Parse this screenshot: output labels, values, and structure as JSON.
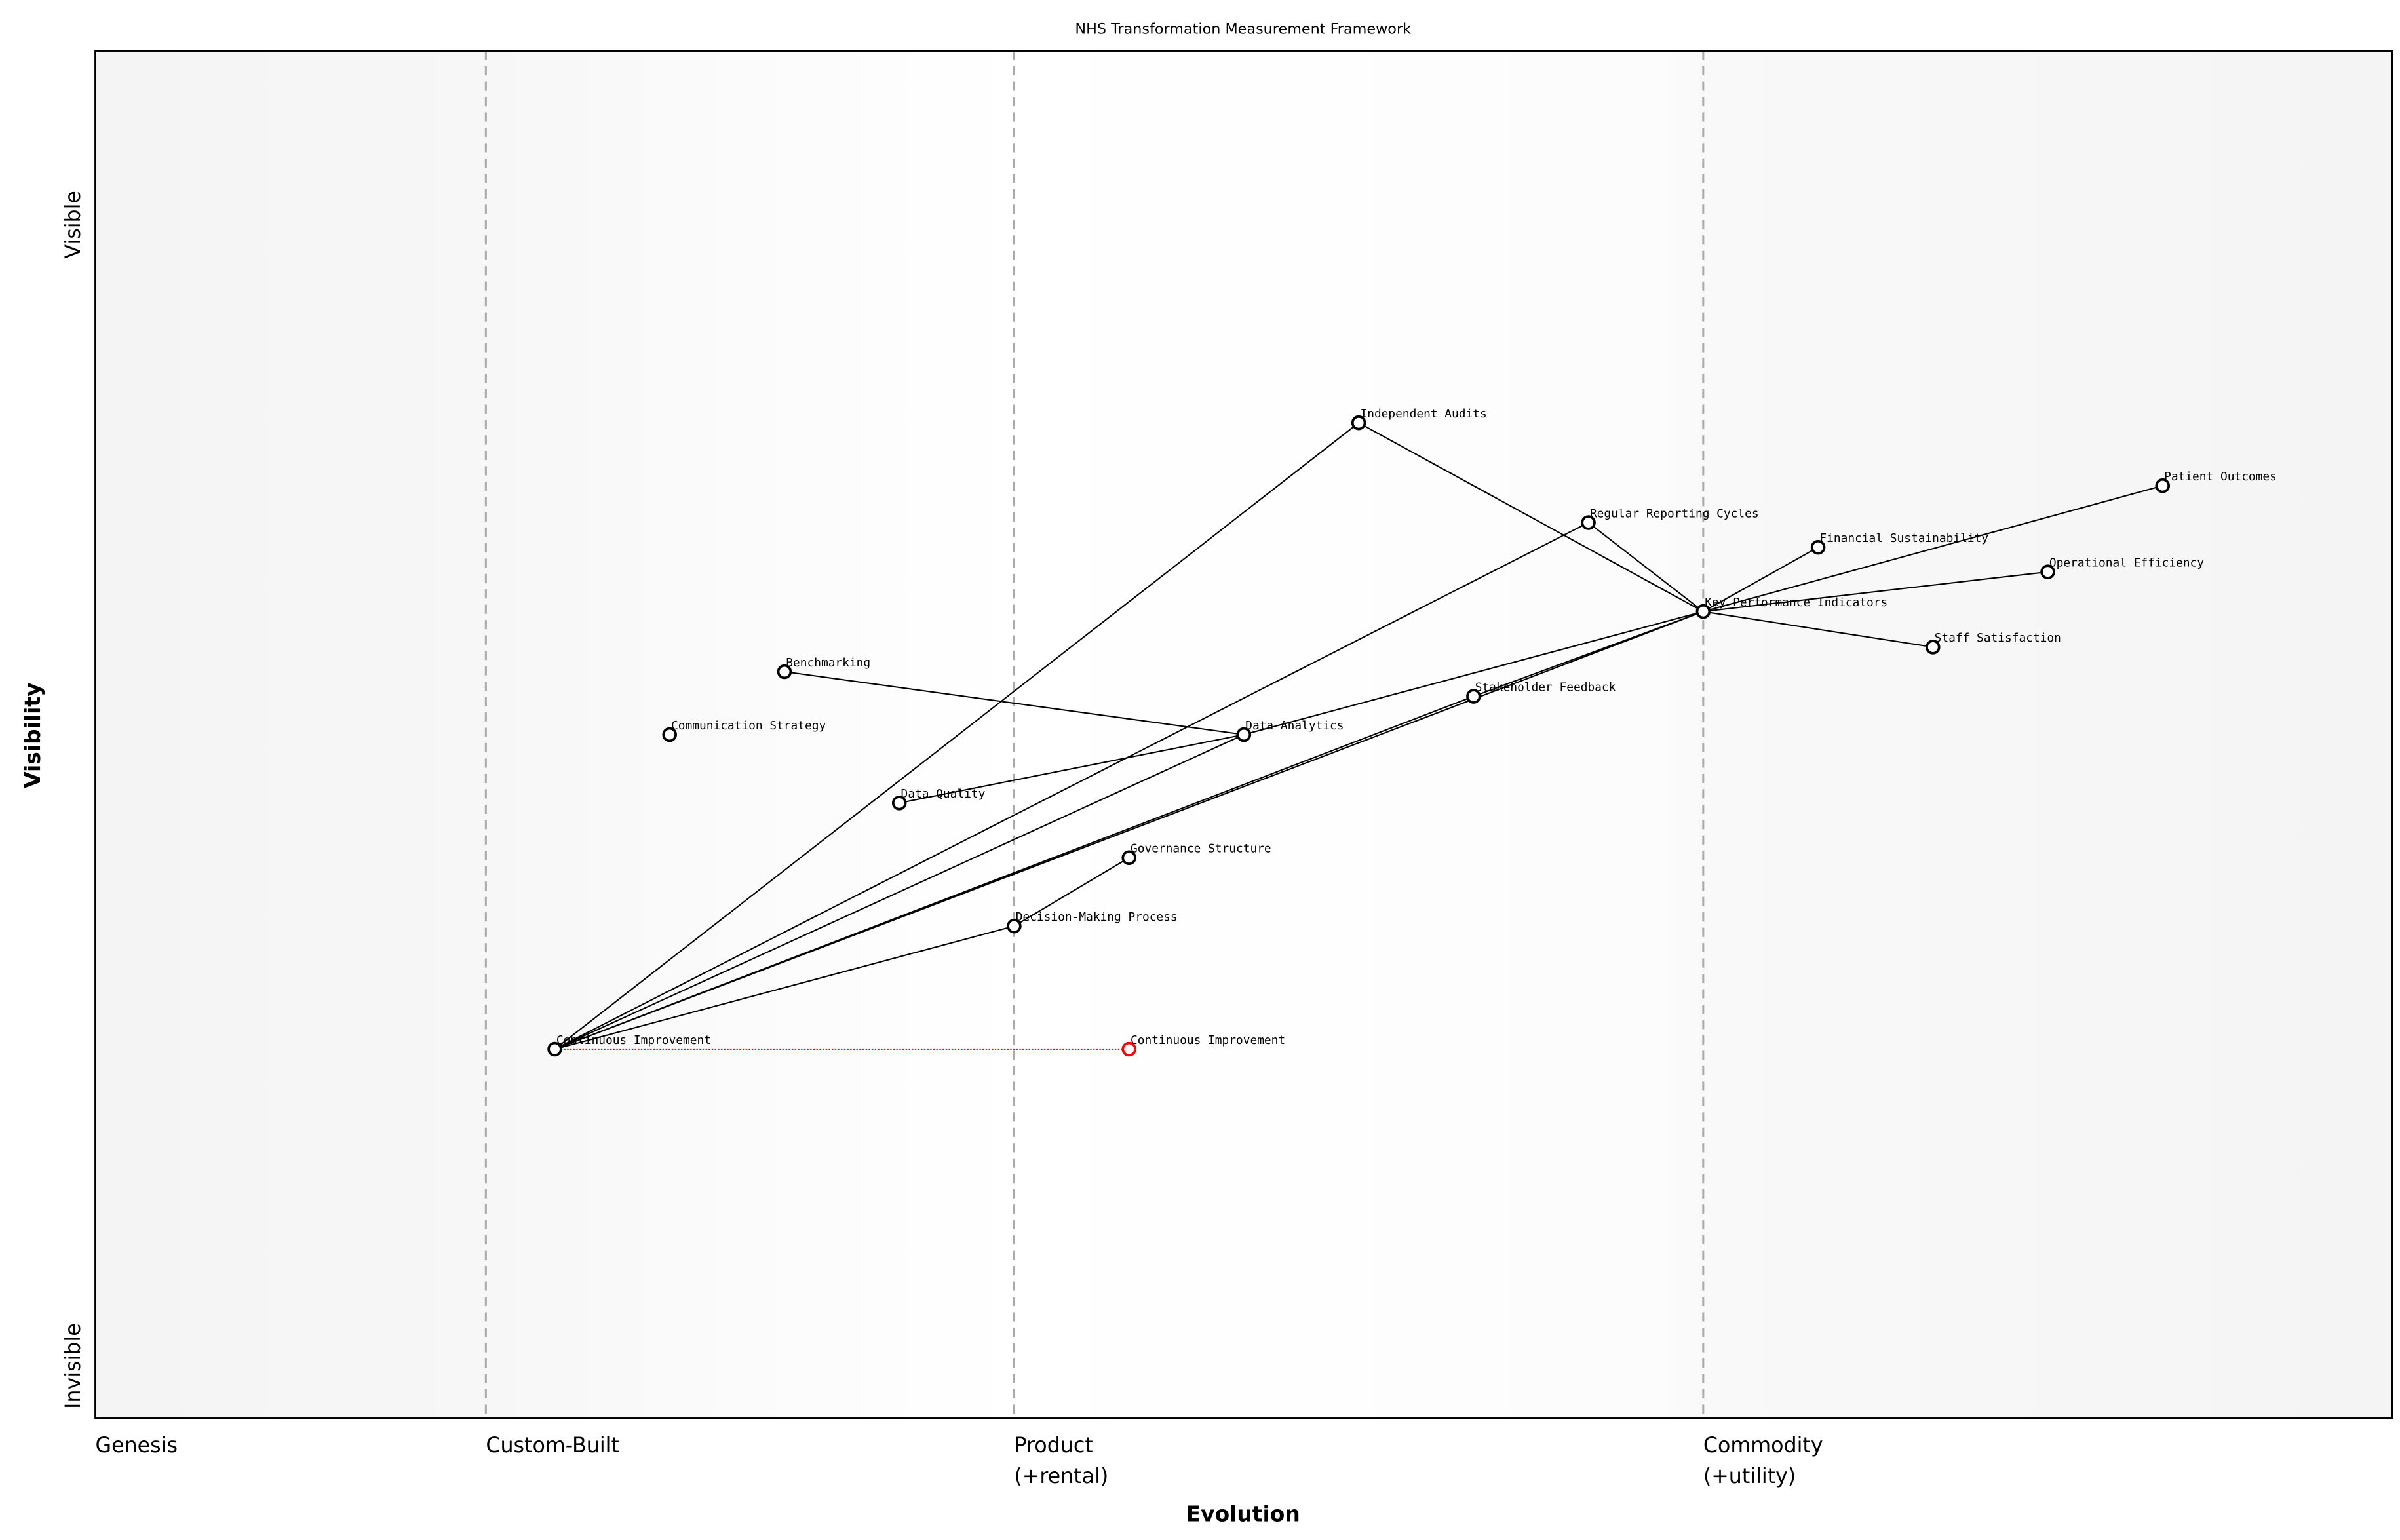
{
  "title": "NHS Transformation Measurement Framework",
  "xlabel": "Evolution",
  "ylabel": "Visibility",
  "y_top_label": "Visible",
  "y_bottom_label": "Invisible",
  "stages": [
    {
      "label": "Genesis",
      "x": 0.0
    },
    {
      "label": "Custom-Built",
      "x": 0.17
    },
    {
      "label": "Product",
      "label2": "(+rental)",
      "x": 0.4
    },
    {
      "label": "Commodity",
      "label2": "(+utility)",
      "x": 0.7
    }
  ],
  "colors": {
    "node": "#000000",
    "evolved": "#ff0000",
    "stage_line": "#aaaaaa",
    "band": "#f5f5f5"
  },
  "chart_data": {
    "type": "wardley-map",
    "xlim": [
      0,
      1
    ],
    "ylim": [
      0,
      1
    ],
    "components": [
      {
        "id": "ci",
        "name": "Continuous Improvement",
        "evolution": 0.2,
        "visibility": 0.27
      },
      {
        "id": "ci_ev",
        "name": "Continuous Improvement",
        "evolution": 0.45,
        "visibility": 0.27,
        "evolved": true
      },
      {
        "id": "dmp",
        "name": "Decision-Making Process",
        "evolution": 0.4,
        "visibility": 0.36
      },
      {
        "id": "gs",
        "name": "Governance Structure",
        "evolution": 0.45,
        "visibility": 0.41
      },
      {
        "id": "dq",
        "name": "Data Quality",
        "evolution": 0.35,
        "visibility": 0.45
      },
      {
        "id": "da",
        "name": "Data Analytics",
        "evolution": 0.5,
        "visibility": 0.5
      },
      {
        "id": "cs",
        "name": "Communication Strategy",
        "evolution": 0.25,
        "visibility": 0.5
      },
      {
        "id": "bm",
        "name": "Benchmarking",
        "evolution": 0.3,
        "visibility": 0.546
      },
      {
        "id": "sf",
        "name": "Stakeholder Feedback",
        "evolution": 0.6,
        "visibility": 0.528
      },
      {
        "id": "kpi",
        "name": "Key Performance Indicators",
        "evolution": 0.7,
        "visibility": 0.59
      },
      {
        "id": "ss",
        "name": "Staff Satisfaction",
        "evolution": 0.8,
        "visibility": 0.564
      },
      {
        "id": "oe",
        "name": "Operational Efficiency",
        "evolution": 0.85,
        "visibility": 0.619
      },
      {
        "id": "fs",
        "name": "Financial Sustainability",
        "evolution": 0.75,
        "visibility": 0.637
      },
      {
        "id": "po",
        "name": "Patient Outcomes",
        "evolution": 0.9,
        "visibility": 0.682
      },
      {
        "id": "rrc",
        "name": "Regular Reporting Cycles",
        "evolution": 0.65,
        "visibility": 0.655
      },
      {
        "id": "ia",
        "name": "Independent Audits",
        "evolution": 0.55,
        "visibility": 0.728
      }
    ],
    "links": [
      [
        "ci",
        "ia"
      ],
      [
        "ci",
        "rrc"
      ],
      [
        "ci",
        "da"
      ],
      [
        "ci",
        "sf"
      ],
      [
        "ci",
        "kpi"
      ],
      [
        "ci",
        "dmp"
      ],
      [
        "dmp",
        "gs"
      ],
      [
        "dq",
        "da"
      ],
      [
        "bm",
        "da"
      ],
      [
        "da",
        "kpi"
      ],
      [
        "sf",
        "kpi"
      ],
      [
        "ia",
        "kpi"
      ],
      [
        "rrc",
        "kpi"
      ],
      [
        "kpi",
        "fs"
      ],
      [
        "kpi",
        "po"
      ],
      [
        "kpi",
        "oe"
      ],
      [
        "kpi",
        "ss"
      ]
    ],
    "evolutions": [
      [
        "ci",
        "ci_ev"
      ]
    ]
  }
}
